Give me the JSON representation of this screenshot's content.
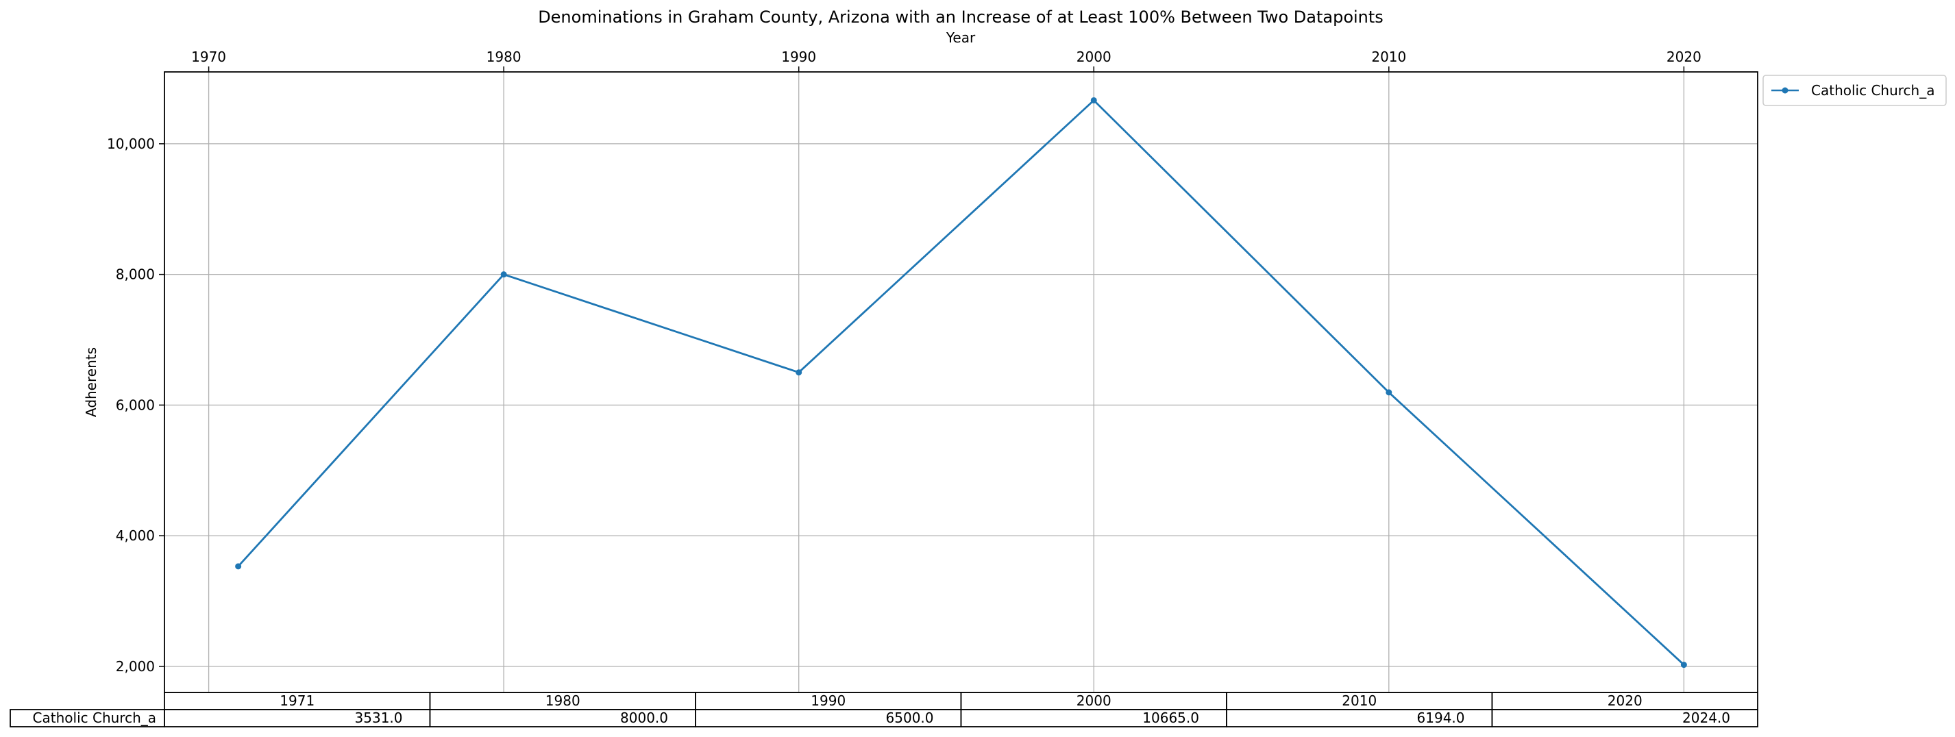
{
  "chart_data": {
    "type": "line",
    "title": "Denominations in Graham County, Arizona with an Increase of at Least 100% Between Two Datapoints",
    "xlabel": "Year",
    "ylabel": "Adherents",
    "x_axis_position": "top",
    "x": [
      1971,
      1980,
      1990,
      2000,
      2010,
      2020
    ],
    "xticks": [
      1970,
      1980,
      1990,
      2000,
      2010,
      2020
    ],
    "xticklabels": [
      "1970",
      "1980",
      "1990",
      "2000",
      "2010",
      "2020"
    ],
    "xlim": [
      1968.5,
      2022.5
    ],
    "yticks": [
      2000,
      4000,
      6000,
      8000,
      10000
    ],
    "yticklabels": [
      "2,000",
      "4,000",
      "6,000",
      "8,000",
      "10,000"
    ],
    "ylim": [
      1600,
      11100
    ],
    "grid": true,
    "legend_position": "outside-top-right",
    "series": [
      {
        "name": "Catholic Church_a",
        "color": "#1f77b4",
        "marker": "circle",
        "values": [
          3531,
          8000,
          6500,
          10665,
          6194,
          2024
        ]
      }
    ],
    "table": {
      "col_labels": [
        "1971",
        "1980",
        "1990",
        "2000",
        "2010",
        "2020"
      ],
      "row_labels": [
        "Catholic Church_a"
      ],
      "cells": [
        [
          "3531.0",
          "8000.0",
          "6500.0",
          "10665.0",
          "6194.0",
          "2024.0"
        ]
      ]
    }
  }
}
